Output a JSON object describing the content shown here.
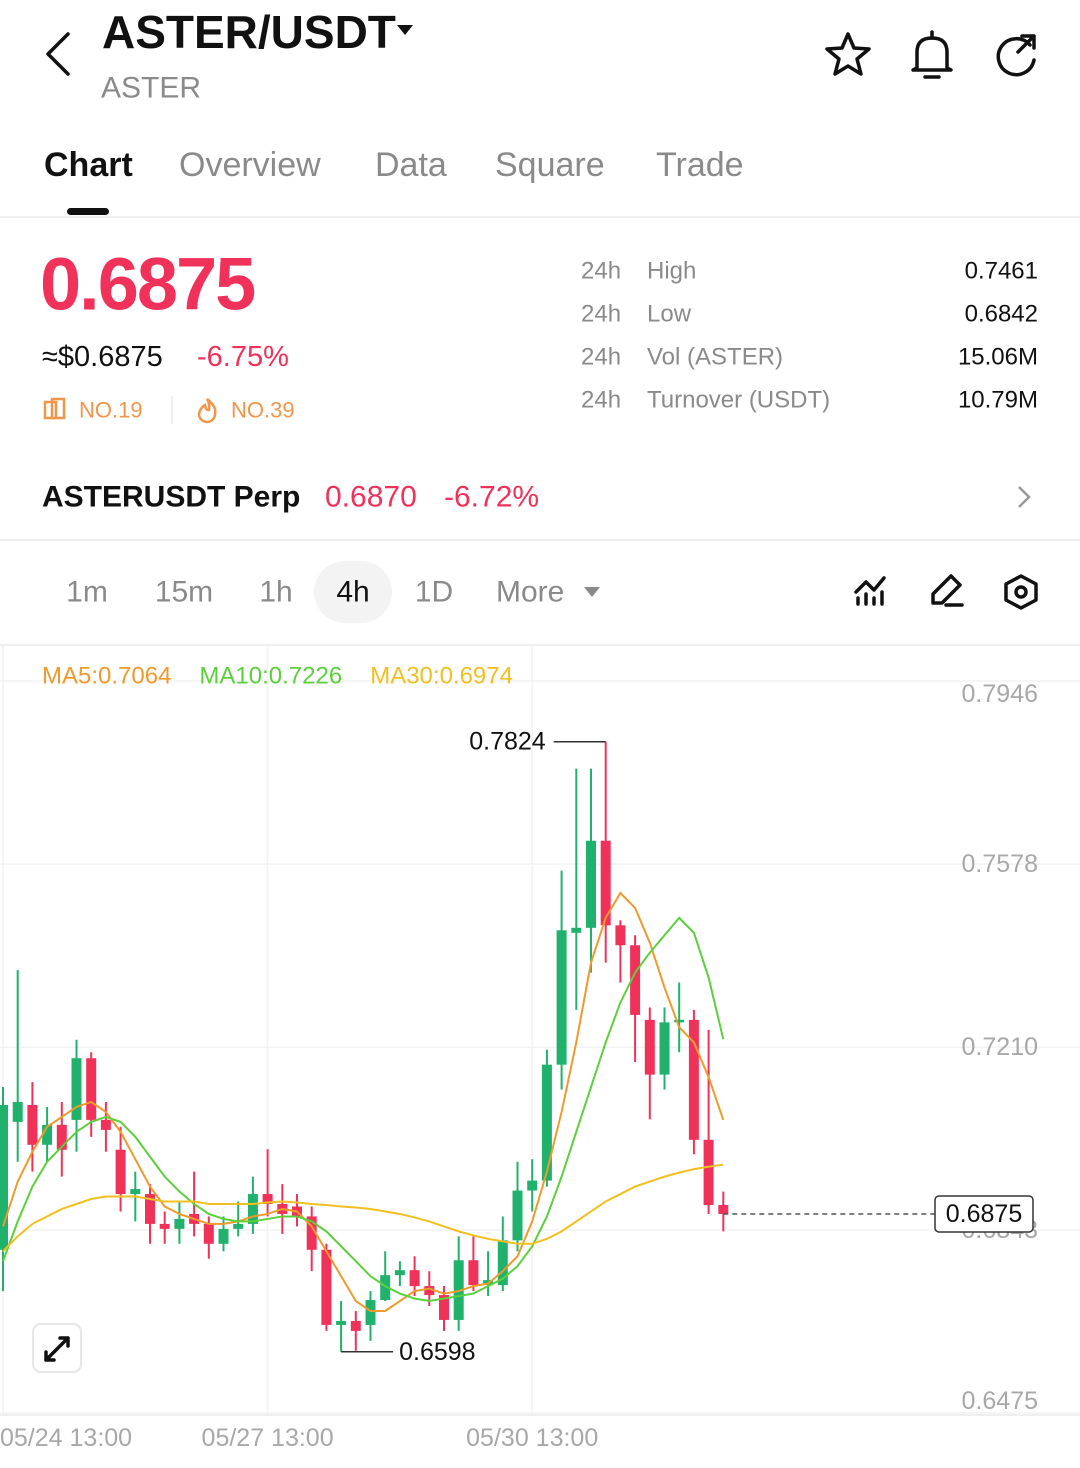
{
  "header": {
    "title": "ASTER/USDT",
    "subtitle": "ASTER"
  },
  "tabs": [
    "Chart",
    "Overview",
    "Data",
    "Square",
    "Trade"
  ],
  "ticker": {
    "price": "0.6875",
    "usd_price": "≈$0.6875",
    "change": "-6.75%",
    "ranks": [
      "NO.19",
      "NO.39"
    ],
    "stats": [
      {
        "period": "24h",
        "label": "High",
        "value": "0.7461"
      },
      {
        "period": "24h",
        "label": "Low",
        "value": "0.6842"
      },
      {
        "period": "24h",
        "label": "Vol (ASTER)",
        "value": "15.06M"
      },
      {
        "period": "24h",
        "label": "Turnover (USDT)",
        "value": "10.79M"
      }
    ]
  },
  "perp": {
    "name": "ASTERUSDT Perp",
    "price": "0.6870",
    "change": "-6.72%"
  },
  "intervals": [
    "1m",
    "15m",
    "1h",
    "4h",
    "1D",
    "More"
  ],
  "chart_data": {
    "type": "candlestick",
    "categories": [
      "05/24 13:00",
      null,
      null,
      null,
      null,
      null,
      null,
      null,
      null,
      null,
      null,
      null,
      null,
      null,
      null,
      null,
      null,
      null,
      "05/27 13:00",
      null,
      null,
      null,
      null,
      null,
      null,
      null,
      null,
      null,
      null,
      null,
      null,
      null,
      null,
      null,
      null,
      null,
      "05/30 13:00",
      null,
      null,
      null,
      null,
      null,
      null,
      null,
      null,
      null,
      null,
      null,
      null,
      null
    ],
    "open": [
      0.6803,
      0.706,
      0.7094,
      0.7014,
      0.7054,
      0.7064,
      0.7188,
      0.7064,
      0.7004,
      0.6915,
      0.6915,
      0.6855,
      0.6845,
      0.6875,
      0.6855,
      0.6815,
      0.6845,
      0.6855,
      0.6915,
      0.6895,
      0.689,
      0.687,
      0.6803,
      0.6652,
      0.666,
      0.6652,
      0.6702,
      0.6752,
      0.6762,
      0.673,
      0.6712,
      0.6662,
      0.6782,
      0.6732,
      0.6732,
      0.6822,
      0.6922,
      0.6942,
      0.7175,
      0.744,
      0.745,
      0.7625,
      0.7455,
      0.7415,
      0.7265,
      0.7155,
      0.726,
      0.7265,
      0.7024,
      0.6893
    ],
    "high": [
      0.713,
      0.7365,
      0.714,
      0.709,
      0.71,
      0.7225,
      0.72,
      0.71,
      0.705,
      0.696,
      0.6935,
      0.688,
      0.69,
      0.696,
      0.687,
      0.687,
      0.69,
      0.695,
      0.7005,
      0.6935,
      0.6915,
      0.689,
      0.6815,
      0.67,
      0.668,
      0.672,
      0.68,
      0.678,
      0.679,
      0.676,
      0.673,
      0.683,
      0.683,
      0.68,
      0.687,
      0.698,
      0.6985,
      0.7205,
      0.7565,
      0.777,
      0.777,
      0.7824,
      0.7465,
      0.7435,
      0.729,
      0.729,
      0.734,
      0.7285,
      0.7245,
      0.692
    ],
    "low": [
      0.672,
      0.698,
      0.696,
      0.698,
      0.695,
      0.7,
      0.703,
      0.7,
      0.688,
      0.686,
      0.6815,
      0.6815,
      0.6815,
      0.683,
      0.6785,
      0.68,
      0.683,
      0.6835,
      0.687,
      0.6835,
      0.685,
      0.676,
      0.664,
      0.6598,
      0.66,
      0.662,
      0.67,
      0.673,
      0.671,
      0.669,
      0.664,
      0.664,
      0.672,
      0.671,
      0.672,
      0.68,
      0.688,
      0.693,
      0.7125,
      0.7285,
      0.736,
      0.738,
      0.734,
      0.718,
      0.7065,
      0.7125,
      0.72,
      0.6995,
      0.6875,
      0.684
    ],
    "close": [
      0.7094,
      0.71,
      0.7014,
      0.7054,
      0.7004,
      0.7188,
      0.7064,
      0.7044,
      0.6915,
      0.6925,
      0.6855,
      0.6845,
      0.6865,
      0.6855,
      0.6815,
      0.6845,
      0.6855,
      0.6915,
      0.6895,
      0.6875,
      0.687,
      0.6803,
      0.6652,
      0.666,
      0.664,
      0.6702,
      0.6752,
      0.6762,
      0.673,
      0.6712,
      0.6662,
      0.6782,
      0.6732,
      0.6742,
      0.6822,
      0.6922,
      0.6942,
      0.7175,
      0.7445,
      0.745,
      0.7625,
      0.7455,
      0.7415,
      0.7275,
      0.7155,
      0.726,
      0.7265,
      0.7024,
      0.6893,
      0.6875
    ],
    "up_color": "#20b26c",
    "down_color": "#f0325a",
    "ma": [
      {
        "name": "MA5:0.7064",
        "color": "#ee9a2c",
        "values": [
          0.685,
          0.694,
          0.7,
          0.705,
          0.707,
          0.709,
          0.71,
          0.708,
          0.704,
          0.6985,
          0.693,
          0.689,
          0.6875,
          0.6865,
          0.6855,
          0.6855,
          0.686,
          0.687,
          0.6875,
          0.6885,
          0.688,
          0.685,
          0.68,
          0.675,
          0.67,
          0.668,
          0.668,
          0.67,
          0.672,
          0.6725,
          0.6715,
          0.672,
          0.673,
          0.6735,
          0.676,
          0.679,
          0.686,
          0.696,
          0.708,
          0.722,
          0.738,
          0.747,
          0.752,
          0.749,
          0.742,
          0.733,
          0.725,
          0.722,
          0.715,
          0.7064
        ]
      },
      {
        "name": "MA10:0.7226",
        "color": "#5cd03c",
        "values": [
          0.678,
          0.686,
          0.693,
          0.698,
          0.701,
          0.704,
          0.706,
          0.707,
          0.706,
          0.703,
          0.699,
          0.695,
          0.692,
          0.6895,
          0.6875,
          0.6865,
          0.686,
          0.686,
          0.6865,
          0.687,
          0.687,
          0.686,
          0.684,
          0.681,
          0.678,
          0.675,
          0.673,
          0.6715,
          0.6705,
          0.67,
          0.6705,
          0.671,
          0.6715,
          0.673,
          0.6745,
          0.677,
          0.681,
          0.687,
          0.695,
          0.704,
          0.713,
          0.722,
          0.73,
          0.736,
          0.74,
          0.7435,
          0.747,
          0.744,
          0.735,
          0.7226
        ]
      },
      {
        "name": "MA30:0.6974",
        "color": "#f0c020",
        "values": [
          0.68,
          0.683,
          0.6855,
          0.687,
          0.6885,
          0.6895,
          0.6905,
          0.691,
          0.691,
          0.691,
          0.6905,
          0.69,
          0.69,
          0.69,
          0.6895,
          0.6895,
          0.6895,
          0.6895,
          0.6898,
          0.69,
          0.6898,
          0.6895,
          0.6893,
          0.689,
          0.6888,
          0.6885,
          0.688,
          0.6875,
          0.6868,
          0.686,
          0.685,
          0.684,
          0.6832,
          0.6825,
          0.682,
          0.6815,
          0.6815,
          0.6825,
          0.684,
          0.686,
          0.688,
          0.69,
          0.6915,
          0.693,
          0.694,
          0.695,
          0.6958,
          0.6965,
          0.697,
          0.6974
        ]
      }
    ],
    "ylim": [
      0.6475,
      0.7946
    ],
    "yticks": [
      0.6475,
      0.6843,
      {
        "value": 0.721,
        "label": "0.7210"
      },
      0.7578,
      0.7946
    ],
    "grid": true
  }
}
